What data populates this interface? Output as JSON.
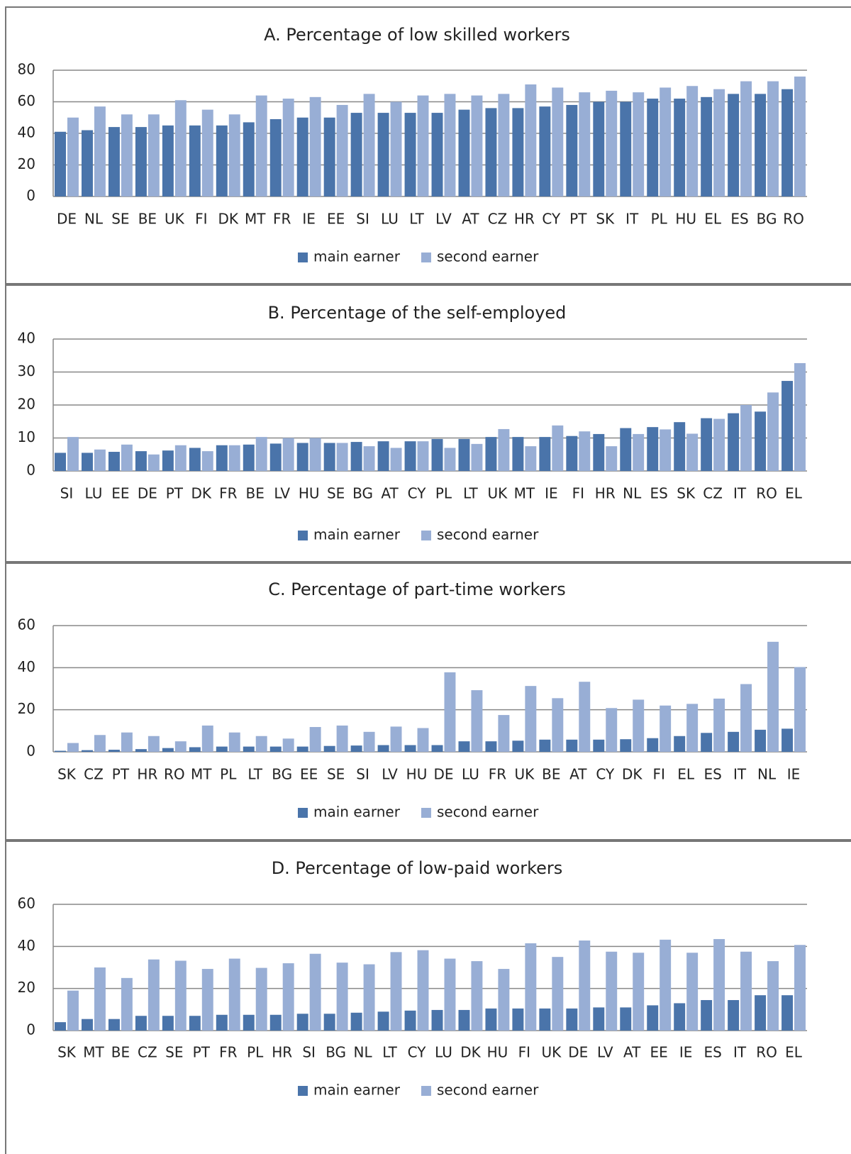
{
  "chart_data": [
    {
      "type": "bar",
      "title": "A. Percentage of low skilled workers",
      "categories": [
        "DE",
        "NL",
        "SE",
        "BE",
        "UK",
        "FI",
        "DK",
        "MT",
        "FR",
        "IE",
        "EE",
        "SI",
        "LU",
        "LT",
        "LV",
        "AT",
        "CZ",
        "HR",
        "CY",
        "PT",
        "SK",
        "IT",
        "PL",
        "HU",
        "EL",
        "ES",
        "BG",
        "RO"
      ],
      "series": [
        {
          "name": "main earner",
          "color": "#4a74aa",
          "values": [
            41,
            42,
            44,
            44,
            45,
            45,
            45,
            47,
            49,
            50,
            50,
            53,
            53,
            53,
            53,
            55,
            56,
            56,
            57,
            58,
            60,
            60,
            62,
            62,
            63,
            65,
            65,
            68
          ]
        },
        {
          "name": "second earner",
          "color": "#98aed5",
          "values": [
            50,
            57,
            52,
            52,
            61,
            55,
            52,
            64,
            62,
            63,
            58,
            65,
            60,
            64,
            65,
            64,
            65,
            71,
            69,
            66,
            67,
            66,
            69,
            70,
            68,
            73,
            73,
            76
          ]
        }
      ],
      "ylim": [
        0,
        80
      ],
      "yticks": [
        0,
        20,
        40,
        60,
        80
      ],
      "grid": true,
      "legend": "bottom"
    },
    {
      "type": "bar",
      "title": "B. Percentage of the self-employed",
      "categories": [
        "SI",
        "LU",
        "EE",
        "DE",
        "PT",
        "DK",
        "FR",
        "BE",
        "LV",
        "HU",
        "SE",
        "BG",
        "AT",
        "CY",
        "PL",
        "LT",
        "UK",
        "MT",
        "IE",
        "FI",
        "HR",
        "NL",
        "ES",
        "SK",
        "CZ",
        "IT",
        "RO",
        "EL"
      ],
      "series": [
        {
          "name": "main earner",
          "color": "#4a74aa",
          "values": [
            5.5,
            5.5,
            5.8,
            6,
            6.2,
            7,
            7.8,
            8,
            8.3,
            8.5,
            8.5,
            8.8,
            9,
            9,
            9.7,
            9.7,
            10.3,
            10.3,
            10.3,
            10.6,
            11.2,
            13,
            13.3,
            14.8,
            16,
            17.5,
            18,
            27.3
          ]
        },
        {
          "name": "second earner",
          "color": "#98aed5",
          "values": [
            10.3,
            6.5,
            8,
            5,
            7.8,
            6,
            7.8,
            10.3,
            10,
            10,
            8.5,
            7.5,
            7,
            9,
            7,
            8.2,
            12.7,
            7.5,
            13.8,
            12,
            7.5,
            11.2,
            12.6,
            11.3,
            15.8,
            20,
            23.8,
            32.7
          ]
        }
      ],
      "ylim": [
        0,
        40
      ],
      "yticks": [
        0,
        10,
        20,
        30,
        40
      ],
      "grid": true,
      "legend": "bottom"
    },
    {
      "type": "bar",
      "title": "C. Percentage of part-time workers",
      "categories": [
        "SK",
        "CZ",
        "PT",
        "HR",
        "RO",
        "MT",
        "PL",
        "LT",
        "BG",
        "EE",
        "SE",
        "SI",
        "LV",
        "HU",
        "DE",
        "LU",
        "FR",
        "UK",
        "BE",
        "AT",
        "CY",
        "DK",
        "FI",
        "EL",
        "ES",
        "IT",
        "NL",
        "IE"
      ],
      "series": [
        {
          "name": "main earner",
          "color": "#4a74aa",
          "values": [
            0.5,
            0.8,
            1,
            1.3,
            1.8,
            2.2,
            2.5,
            2.5,
            2.5,
            2.5,
            2.8,
            3,
            3.2,
            3.2,
            3.2,
            5,
            5,
            5.3,
            5.8,
            5.8,
            5.8,
            6,
            6.5,
            7.5,
            9,
            9.5,
            10.5,
            11
          ]
        },
        {
          "name": "second earner",
          "color": "#98aed5",
          "values": [
            4.2,
            8,
            9.2,
            7.5,
            5,
            12.5,
            9.2,
            7.5,
            6.3,
            11.8,
            12.5,
            9.5,
            12,
            11.3,
            37.8,
            29.3,
            17.5,
            31.3,
            25.5,
            33.3,
            20.8,
            24.8,
            22,
            22.8,
            25.3,
            32.2,
            52.3,
            40.3
          ]
        }
      ],
      "ylim": [
        0,
        60
      ],
      "yticks": [
        0,
        20,
        40,
        60
      ],
      "grid": true,
      "legend": "bottom"
    },
    {
      "type": "bar",
      "title": "D. Percentage of low-paid workers",
      "categories": [
        "SK",
        "MT",
        "BE",
        "CZ",
        "SE",
        "PT",
        "FR",
        "PL",
        "HR",
        "SI",
        "BG",
        "NL",
        "LT",
        "CY",
        "LU",
        "DK",
        "HU",
        "FI",
        "UK",
        "DE",
        "LV",
        "AT",
        "EE",
        "IE",
        "ES",
        "IT",
        "RO",
        "EL"
      ],
      "series": [
        {
          "name": "main earner",
          "color": "#4a74aa",
          "values": [
            4,
            5.5,
            5.5,
            7,
            7,
            7,
            7.5,
            7.5,
            7.5,
            8,
            8,
            8.5,
            9,
            9.5,
            9.8,
            9.8,
            10.5,
            10.5,
            10.5,
            10.5,
            11,
            11,
            12,
            13,
            14.5,
            14.5,
            16.8,
            16.8
          ]
        },
        {
          "name": "second earner",
          "color": "#98aed5",
          "values": [
            19,
            30,
            25,
            33.8,
            33.2,
            29.3,
            34.2,
            29.8,
            32,
            36.5,
            32.3,
            31.5,
            37.3,
            38.2,
            34.2,
            33,
            29.3,
            41.5,
            35,
            42.8,
            37.5,
            37,
            43.2,
            37,
            43.5,
            37.5,
            33,
            40.7
          ]
        }
      ],
      "ylim": [
        0,
        60
      ],
      "yticks": [
        0,
        20,
        40,
        60
      ],
      "grid": true,
      "legend": "bottom"
    }
  ]
}
